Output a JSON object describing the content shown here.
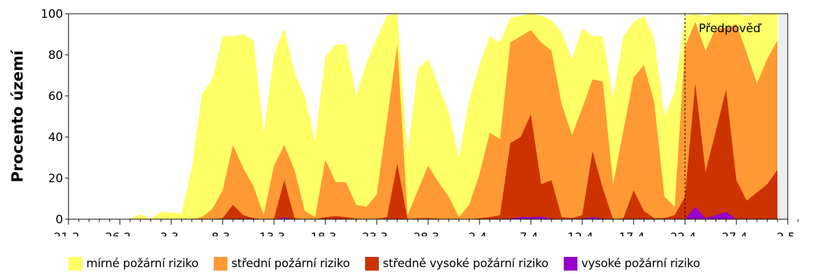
{
  "chart_data": {
    "type": "area",
    "stacked": true,
    "title": "",
    "xlabel": "",
    "ylabel": "Procento území",
    "ylim": [
      0,
      100
    ],
    "yticks": [
      0,
      20,
      40,
      60,
      80,
      100
    ],
    "x_start_label": "21.2.",
    "x_days_total": 71,
    "xtick_labels": [
      {
        "day": 0,
        "label": "21.2."
      },
      {
        "day": 5,
        "label": "26.2."
      },
      {
        "day": 10,
        "label": "3.3."
      },
      {
        "day": 15,
        "label": "8.3."
      },
      {
        "day": 20,
        "label": "13.3."
      },
      {
        "day": 25,
        "label": "18.3."
      },
      {
        "day": 30,
        "label": "23.3."
      },
      {
        "day": 35,
        "label": "28.3."
      },
      {
        "day": 40,
        "label": "2.4."
      },
      {
        "day": 45,
        "label": "7.4."
      },
      {
        "day": 50,
        "label": "12.4."
      },
      {
        "day": 55,
        "label": "17.4."
      },
      {
        "day": 60,
        "label": "22.4."
      },
      {
        "day": 65,
        "label": "27.4."
      },
      {
        "day": 70,
        "label": "2.5."
      }
    ],
    "forecast": {
      "start_day": 60,
      "label": "Předpověď",
      "end_day": 69
    },
    "grid": false,
    "legend_position": "bottom",
    "series_note": "values are cumulative tops of stacked layers (percent of territory), one value per day starting 21.2.",
    "series": [
      {
        "name": "mírné požární riziko",
        "color": "#ffff66",
        "values": [
          0,
          0,
          0,
          0,
          0,
          0,
          0.3,
          2.5,
          0.3,
          3.5,
          3.3,
          2.8,
          25,
          61,
          68,
          89,
          89,
          90,
          87,
          42,
          80,
          93,
          71,
          60,
          38,
          79,
          85,
          85,
          60,
          76,
          88,
          99,
          100,
          32,
          73,
          78,
          65,
          52,
          30,
          58,
          75,
          89,
          86,
          98,
          99,
          100,
          99,
          97,
          91,
          78,
          93,
          89,
          89,
          59,
          89,
          96,
          99,
          88,
          50,
          62,
          99,
          100,
          99,
          100,
          100,
          100,
          99,
          100,
          100,
          100
        ]
      },
      {
        "name": "střední požární riziko",
        "color": "#ff9933",
        "values": [
          0,
          0,
          0,
          0,
          0,
          0,
          0,
          0,
          0,
          0,
          0,
          0,
          0,
          1,
          5,
          14,
          36,
          25,
          16,
          2,
          26,
          36,
          24,
          4,
          1,
          29,
          18,
          18,
          7,
          6,
          12,
          48,
          85,
          2,
          14,
          26,
          18,
          11,
          1,
          7,
          22,
          42,
          39,
          86,
          89,
          92,
          86,
          82,
          56,
          41,
          54,
          68,
          67,
          17,
          43,
          69,
          75,
          57,
          11,
          6,
          84,
          96,
          82,
          93,
          93,
          95,
          81,
          66,
          78,
          87
        ]
      },
      {
        "name": "středně vysoké požární riziko",
        "color": "#cc3300",
        "values": [
          0,
          0,
          0,
          0,
          0,
          0,
          0,
          0,
          0,
          0,
          0,
          0,
          0,
          0,
          0,
          0.5,
          7,
          2,
          0.5,
          0,
          0.3,
          19,
          0.5,
          0,
          0,
          1,
          1.5,
          1,
          0.3,
          0,
          0.2,
          1,
          27,
          0,
          0.5,
          0.5,
          0.3,
          0,
          0,
          0,
          0.5,
          1,
          2,
          37,
          40,
          51,
          17,
          19,
          1,
          0.5,
          2,
          33,
          15,
          0,
          0.5,
          14,
          4,
          0.5,
          0.5,
          2,
          11,
          66,
          23,
          43,
          63,
          19,
          9,
          13,
          17,
          24
        ]
      },
      {
        "name": "vysoké požární riziko",
        "color": "#9900cc",
        "values": [
          0,
          0,
          0,
          0,
          0,
          0,
          0,
          0,
          0,
          0,
          0,
          0,
          0,
          0,
          0,
          0,
          0,
          0,
          0,
          0,
          0,
          0.8,
          0,
          0,
          0,
          0,
          0,
          0,
          0,
          0,
          0,
          0,
          0,
          0,
          0,
          0,
          0,
          0,
          0,
          0,
          0,
          0,
          0,
          0.3,
          1,
          1,
          1.2,
          0.3,
          0,
          0,
          0.2,
          1,
          0.3,
          0,
          0,
          0,
          0,
          0,
          0,
          0,
          0,
          6,
          0.5,
          2,
          3.5,
          0,
          0,
          0,
          0,
          0
        ]
      }
    ]
  },
  "legend": {
    "items": [
      {
        "label": "mírné požární riziko",
        "color": "#ffff66"
      },
      {
        "label": "střední požární riziko",
        "color": "#ff9933"
      },
      {
        "label": "středně vysoké požární riziko",
        "color": "#cc3300"
      },
      {
        "label": "vysoké požární riziko",
        "color": "#9900cc"
      }
    ]
  },
  "colors": {
    "axis": "#000000",
    "forecast_band": "#eeeeee",
    "background": "#ffffff"
  }
}
